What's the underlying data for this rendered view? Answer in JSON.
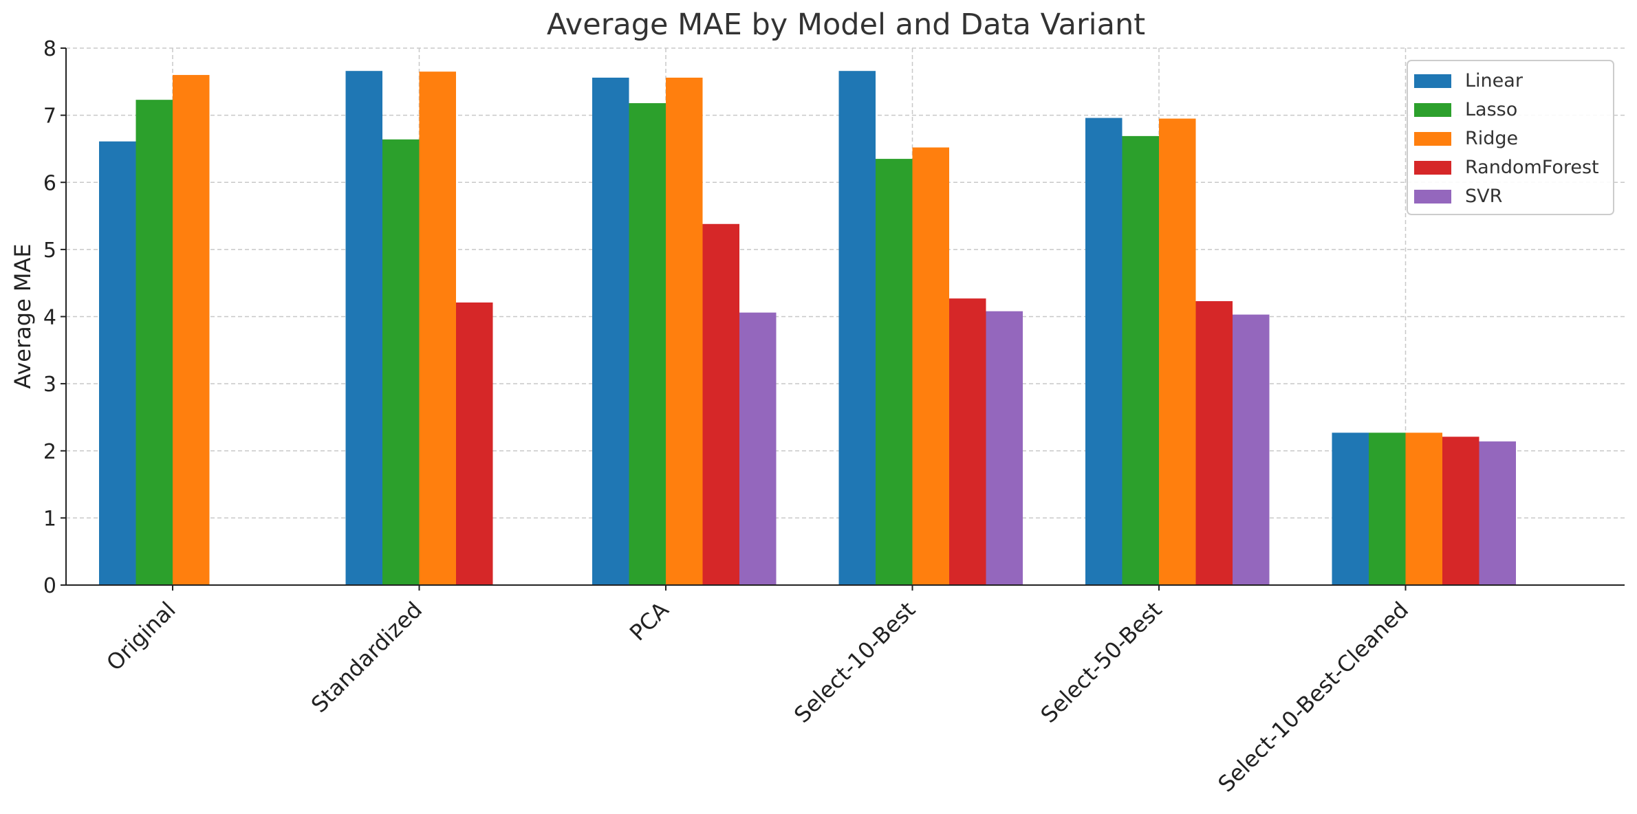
{
  "chart_data": {
    "type": "bar",
    "title": "Average MAE by Model and Data Variant",
    "xlabel": "",
    "ylabel": "Average MAE",
    "ylim": [
      0,
      8
    ],
    "yticks": [
      0,
      1,
      2,
      3,
      4,
      5,
      6,
      7,
      8
    ],
    "grid": true,
    "legend_position": "top-right",
    "categories": [
      "Original",
      "Standardized",
      "PCA",
      "Select-10-Best",
      "Select-50-Best",
      "Select-10-Best-Cleaned"
    ],
    "series": [
      {
        "name": "Linear",
        "color": "#1f77b4",
        "values": [
          6.61,
          7.66,
          7.56,
          7.66,
          6.96,
          2.27
        ]
      },
      {
        "name": "Lasso",
        "color": "#2ca02c",
        "values": [
          7.23,
          6.64,
          7.18,
          6.35,
          6.69,
          2.27
        ]
      },
      {
        "name": "Ridge",
        "color": "#ff7f0e",
        "values": [
          7.6,
          7.65,
          7.56,
          6.52,
          6.95,
          2.27
        ]
      },
      {
        "name": "RandomForest",
        "color": "#d62728",
        "values": [
          null,
          4.21,
          5.38,
          4.27,
          4.23,
          2.21
        ]
      },
      {
        "name": "SVR",
        "color": "#9467bd",
        "values": [
          null,
          null,
          4.06,
          4.08,
          4.03,
          2.14
        ]
      }
    ]
  }
}
